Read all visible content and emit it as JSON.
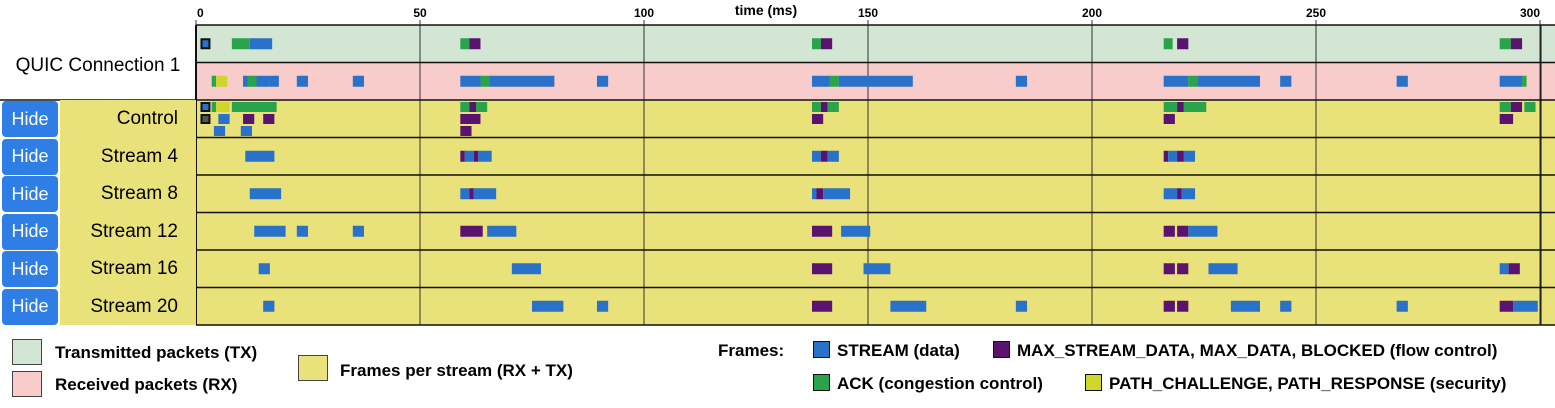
{
  "connection_label": "QUIC Connection 1",
  "hide_label": "Hide",
  "legend": {
    "tx": "Transmitted packets (TX)",
    "rx": "Received packets (RX)",
    "streams": "Frames per stream (RX + TX)",
    "frames_title": "Frames:",
    "stream_data": "STREAM (data)",
    "flow_control": "MAX_STREAM_DATA, MAX_DATA, BLOCKED (flow control)",
    "ack": "ACK (congestion control)",
    "path": "PATH_CHALLENGE, PATH_RESPONSE (security)"
  },
  "colors": {
    "tx_bg": "#d3e6d3",
    "rx_bg": "#f9cccc",
    "stream_bg": "#e9e17a",
    "stream": "#2a71c9",
    "flow": "#5a1470",
    "ack": "#2aa44a",
    "path": "#cfd52a",
    "hide_button": "#2f7ee6"
  },
  "chart_data": {
    "type": "timeline",
    "xlabel": "time (ms)",
    "xlim": [
      0,
      300
    ],
    "xticks": [
      0,
      50,
      100,
      150,
      200,
      250,
      300
    ],
    "rows": [
      {
        "name": "TX",
        "events": [
          {
            "t": 1,
            "d": 2,
            "k": "box"
          },
          {
            "t": 8,
            "d": 4,
            "k": "ack"
          },
          {
            "t": 12,
            "d": 5,
            "k": "stream"
          },
          {
            "t": 59,
            "d": 2,
            "k": "ack"
          },
          {
            "t": 61,
            "d": 2.5,
            "k": "flow"
          },
          {
            "t": 137.5,
            "d": 2,
            "k": "ack"
          },
          {
            "t": 139.5,
            "d": 2.5,
            "k": "flow"
          },
          {
            "t": 216,
            "d": 2,
            "k": "ack"
          },
          {
            "t": 219,
            "d": 2.5,
            "k": "flow"
          },
          {
            "t": 291,
            "d": 2.5,
            "k": "ack"
          },
          {
            "t": 293.5,
            "d": 2.5,
            "k": "flow"
          }
        ]
      },
      {
        "name": "RX",
        "events": [
          {
            "t": 3.5,
            "d": 1,
            "k": "ack"
          },
          {
            "t": 4.5,
            "d": 2.5,
            "k": "path"
          },
          {
            "t": 10.5,
            "d": 1,
            "k": "stream"
          },
          {
            "t": 11.5,
            "d": 2,
            "k": "ack"
          },
          {
            "t": 13.5,
            "d": 3,
            "k": "stream"
          },
          {
            "t": 16.5,
            "d": 2,
            "k": "stream"
          },
          {
            "t": 22.5,
            "d": 2.5,
            "k": "stream"
          },
          {
            "t": 35,
            "d": 2.5,
            "k": "stream"
          },
          {
            "t": 59,
            "d": 4.5,
            "k": "stream"
          },
          {
            "t": 63.5,
            "d": 2,
            "k": "ack"
          },
          {
            "t": 65.5,
            "d": 14.5,
            "k": "stream"
          },
          {
            "t": 89.5,
            "d": 2.5,
            "k": "stream"
          },
          {
            "t": 137.5,
            "d": 4,
            "k": "stream"
          },
          {
            "t": 141.5,
            "d": 2,
            "k": "ack"
          },
          {
            "t": 143.5,
            "d": 16.5,
            "k": "stream"
          },
          {
            "t": 183,
            "d": 2.5,
            "k": "stream"
          },
          {
            "t": 216,
            "d": 5.5,
            "k": "stream"
          },
          {
            "t": 221.5,
            "d": 2,
            "k": "ack"
          },
          {
            "t": 223.5,
            "d": 14,
            "k": "stream"
          },
          {
            "t": 242,
            "d": 2.5,
            "k": "stream"
          },
          {
            "t": 268,
            "d": 2.5,
            "k": "stream"
          },
          {
            "t": 291,
            "d": 5,
            "k": "stream"
          },
          {
            "t": 296,
            "d": 1,
            "k": "ack"
          }
        ]
      },
      {
        "name": "Control",
        "hide": true,
        "sublanes": [
          [
            {
              "t": 1,
              "d": 2,
              "k": "box"
            },
            {
              "t": 3.5,
              "d": 1,
              "k": "ack"
            },
            {
              "t": 4.5,
              "d": 3,
              "k": "path"
            },
            {
              "t": 8,
              "d": 10,
              "k": "ack"
            },
            {
              "t": 59,
              "d": 2,
              "k": "ack"
            },
            {
              "t": 61,
              "d": 1.5,
              "k": "flow"
            },
            {
              "t": 62.5,
              "d": 2.5,
              "k": "ack"
            },
            {
              "t": 137.5,
              "d": 2,
              "k": "ack"
            },
            {
              "t": 139.5,
              "d": 1.5,
              "k": "flow"
            },
            {
              "t": 141,
              "d": 2.5,
              "k": "ack"
            },
            {
              "t": 216,
              "d": 3,
              "k": "ack"
            },
            {
              "t": 219,
              "d": 1.5,
              "k": "flow"
            },
            {
              "t": 220.5,
              "d": 5,
              "k": "ack"
            },
            {
              "t": 291,
              "d": 2.5,
              "k": "ack"
            },
            {
              "t": 293.5,
              "d": 2.5,
              "k": "flow"
            },
            {
              "t": 296.5,
              "d": 2.5,
              "k": "ack"
            }
          ],
          [
            {
              "t": 1,
              "d": 2,
              "k": "gbox"
            },
            {
              "t": 5,
              "d": 2.5,
              "k": "stream"
            },
            {
              "t": 10.5,
              "d": 2.5,
              "k": "flow"
            },
            {
              "t": 15,
              "d": 2.5,
              "k": "flow"
            },
            {
              "t": 59,
              "d": 4.5,
              "k": "flow"
            },
            {
              "t": 137.5,
              "d": 2.5,
              "k": "flow"
            },
            {
              "t": 216,
              "d": 2.5,
              "k": "flow"
            },
            {
              "t": 291,
              "d": 3,
              "k": "flow"
            }
          ],
          [
            {
              "t": 4,
              "d": 2.5,
              "k": "stream"
            },
            {
              "t": 10,
              "d": 2.5,
              "k": "stream"
            },
            {
              "t": 59,
              "d": 2.5,
              "k": "flow"
            }
          ]
        ]
      },
      {
        "name": "Stream 4",
        "hide": true,
        "events": [
          {
            "t": 11,
            "d": 6.5,
            "k": "stream"
          },
          {
            "t": 59,
            "d": 1,
            "k": "flow"
          },
          {
            "t": 60,
            "d": 2,
            "k": "stream"
          },
          {
            "t": 62,
            "d": 1,
            "k": "flow"
          },
          {
            "t": 63,
            "d": 3,
            "k": "stream"
          },
          {
            "t": 137.5,
            "d": 2,
            "k": "stream"
          },
          {
            "t": 139.5,
            "d": 1.5,
            "k": "flow"
          },
          {
            "t": 141,
            "d": 2.5,
            "k": "stream"
          },
          {
            "t": 216,
            "d": 1,
            "k": "flow"
          },
          {
            "t": 217,
            "d": 2,
            "k": "stream"
          },
          {
            "t": 219,
            "d": 1.5,
            "k": "flow"
          },
          {
            "t": 220.5,
            "d": 2.5,
            "k": "stream"
          }
        ]
      },
      {
        "name": "Stream 8",
        "hide": true,
        "events": [
          {
            "t": 12,
            "d": 7,
            "k": "stream"
          },
          {
            "t": 59,
            "d": 2,
            "k": "stream"
          },
          {
            "t": 61,
            "d": 1,
            "k": "flow"
          },
          {
            "t": 62,
            "d": 5,
            "k": "stream"
          },
          {
            "t": 137.5,
            "d": 1,
            "k": "stream"
          },
          {
            "t": 138.5,
            "d": 1.5,
            "k": "flow"
          },
          {
            "t": 140,
            "d": 6,
            "k": "stream"
          },
          {
            "t": 216,
            "d": 3,
            "k": "stream"
          },
          {
            "t": 219,
            "d": 1,
            "k": "flow"
          },
          {
            "t": 220,
            "d": 3,
            "k": "stream"
          }
        ]
      },
      {
        "name": "Stream 12",
        "hide": true,
        "events": [
          {
            "t": 13,
            "d": 7,
            "k": "stream"
          },
          {
            "t": 22.5,
            "d": 2.5,
            "k": "stream"
          },
          {
            "t": 35,
            "d": 2.5,
            "k": "stream"
          },
          {
            "t": 59,
            "d": 5,
            "k": "flow"
          },
          {
            "t": 65,
            "d": 6.5,
            "k": "stream"
          },
          {
            "t": 137.5,
            "d": 4.5,
            "k": "flow"
          },
          {
            "t": 144,
            "d": 6.5,
            "k": "stream"
          },
          {
            "t": 216,
            "d": 2.5,
            "k": "flow"
          },
          {
            "t": 219,
            "d": 2.5,
            "k": "flow"
          },
          {
            "t": 221.5,
            "d": 6.5,
            "k": "stream"
          }
        ]
      },
      {
        "name": "Stream 16",
        "hide": true,
        "events": [
          {
            "t": 14,
            "d": 2.5,
            "k": "stream"
          },
          {
            "t": 70.5,
            "d": 6.5,
            "k": "stream"
          },
          {
            "t": 137.5,
            "d": 4.5,
            "k": "flow"
          },
          {
            "t": 149,
            "d": 6,
            "k": "stream"
          },
          {
            "t": 216,
            "d": 2.5,
            "k": "flow"
          },
          {
            "t": 219,
            "d": 2.5,
            "k": "flow"
          },
          {
            "t": 226,
            "d": 6.5,
            "k": "stream"
          },
          {
            "t": 291,
            "d": 2,
            "k": "stream"
          },
          {
            "t": 293,
            "d": 2.5,
            "k": "flow"
          }
        ]
      },
      {
        "name": "Stream 20",
        "hide": true,
        "events": [
          {
            "t": 15,
            "d": 2.5,
            "k": "stream"
          },
          {
            "t": 75,
            "d": 7,
            "k": "stream"
          },
          {
            "t": 89.5,
            "d": 2.5,
            "k": "stream"
          },
          {
            "t": 137.5,
            "d": 4.5,
            "k": "flow"
          },
          {
            "t": 155,
            "d": 8,
            "k": "stream"
          },
          {
            "t": 183,
            "d": 2.5,
            "k": "stream"
          },
          {
            "t": 216,
            "d": 2.5,
            "k": "flow"
          },
          {
            "t": 219,
            "d": 2.5,
            "k": "flow"
          },
          {
            "t": 231,
            "d": 6.5,
            "k": "stream"
          },
          {
            "t": 242,
            "d": 2.5,
            "k": "stream"
          },
          {
            "t": 268,
            "d": 2.5,
            "k": "stream"
          },
          {
            "t": 291,
            "d": 3,
            "k": "flow"
          },
          {
            "t": 294,
            "d": 5.5,
            "k": "stream"
          }
        ]
      }
    ]
  }
}
